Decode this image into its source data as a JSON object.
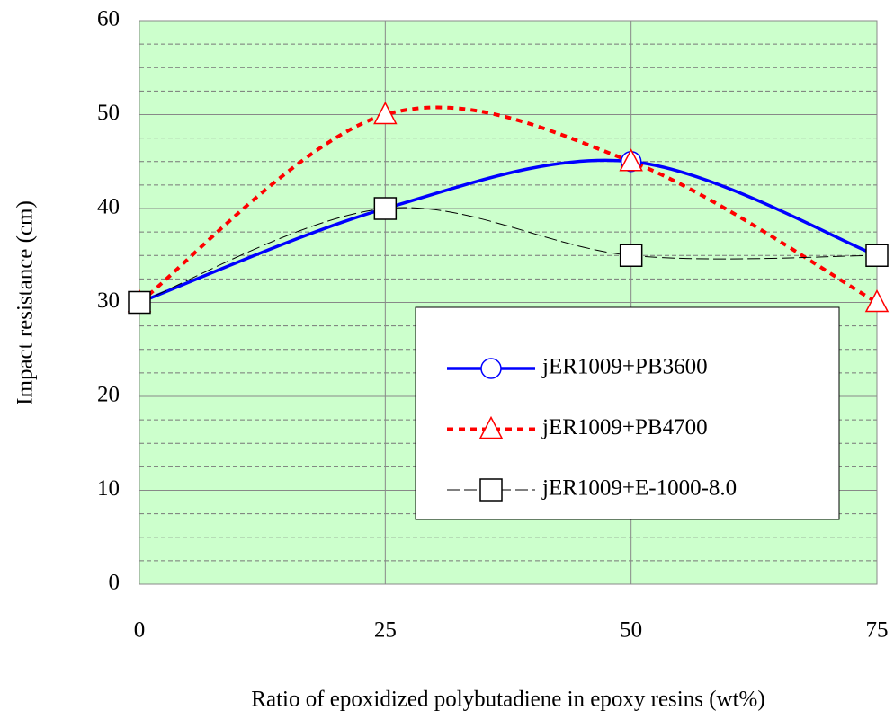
{
  "chart_data": {
    "type": "line",
    "x_label": "Ratio of epoxidized polybutadiene in epoxy resins (wt%)",
    "y_label": "Impact resistance  (cm)",
    "x": [
      0,
      25,
      50,
      75
    ],
    "series": [
      {
        "name": "jER1009+PB3600",
        "color": "#0000ff",
        "marker": "circle",
        "line_style": "solid",
        "values": [
          30,
          40,
          45,
          35
        ]
      },
      {
        "name": "jER1009+PB4700",
        "color": "#ff0000",
        "marker": "triangle",
        "line_style": "dotted",
        "values": [
          30,
          50,
          45,
          30
        ]
      },
      {
        "name": "jER1009+E-1000-8.0",
        "color": "#000000",
        "marker": "square",
        "line_style": "dashed",
        "values": [
          30,
          40,
          35,
          35
        ]
      }
    ],
    "xlim": [
      0,
      75
    ],
    "xticks": [
      0,
      25,
      50,
      75
    ],
    "ylim": [
      0,
      60
    ],
    "yticks": [
      0,
      10,
      20,
      30,
      40,
      50,
      60
    ],
    "grid": true,
    "smooth": true,
    "legend": "lower right",
    "background": "#ccffcc"
  }
}
